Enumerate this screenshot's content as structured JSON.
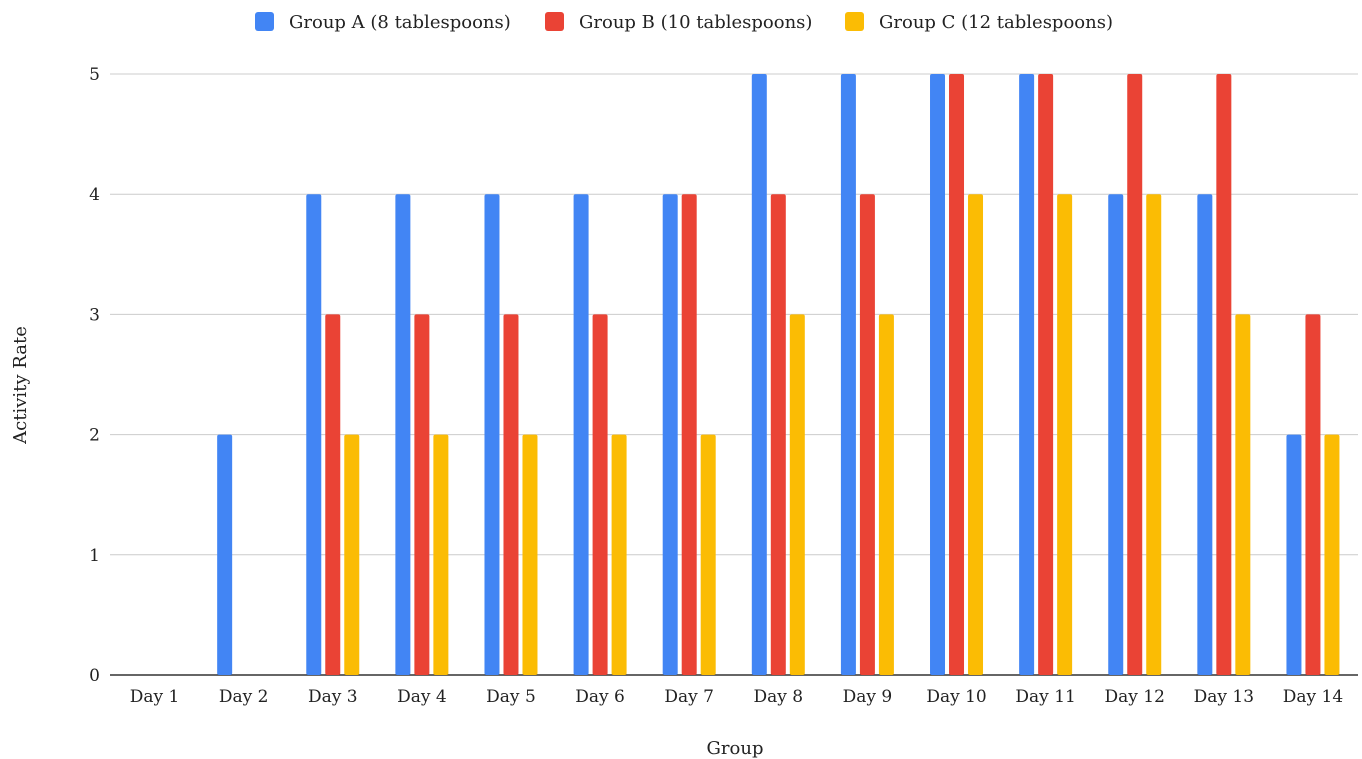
{
  "chart_data": {
    "type": "bar",
    "xlabel": "Group",
    "ylabel": "Activity Rate",
    "ylim": [
      0,
      5
    ],
    "yticks": [
      0,
      1,
      2,
      3,
      4,
      5
    ],
    "grid": true,
    "legend_position": "top",
    "categories": [
      "Day 1",
      "Day 2",
      "Day 3",
      "Day 4",
      "Day 5",
      "Day 6",
      "Day 7",
      "Day 8",
      "Day 9",
      "Day 10",
      "Day 11",
      "Day 12",
      "Day 13",
      "Day 14"
    ],
    "series": [
      {
        "name": "Group A (8 tablespoons)",
        "color": "#4285F4",
        "values": [
          0,
          2,
          4,
          4,
          4,
          4,
          4,
          5,
          5,
          5,
          5,
          4,
          4,
          2
        ]
      },
      {
        "name": "Group B (10 tablespoons)",
        "color": "#EA4335",
        "values": [
          0,
          0,
          3,
          3,
          3,
          3,
          4,
          4,
          4,
          5,
          5,
          5,
          5,
          3
        ]
      },
      {
        "name": "Group C (12 tablespoons)",
        "color": "#FBBC04",
        "values": [
          0,
          0,
          2,
          2,
          2,
          2,
          2,
          3,
          3,
          4,
          4,
          4,
          3,
          2
        ]
      }
    ]
  }
}
